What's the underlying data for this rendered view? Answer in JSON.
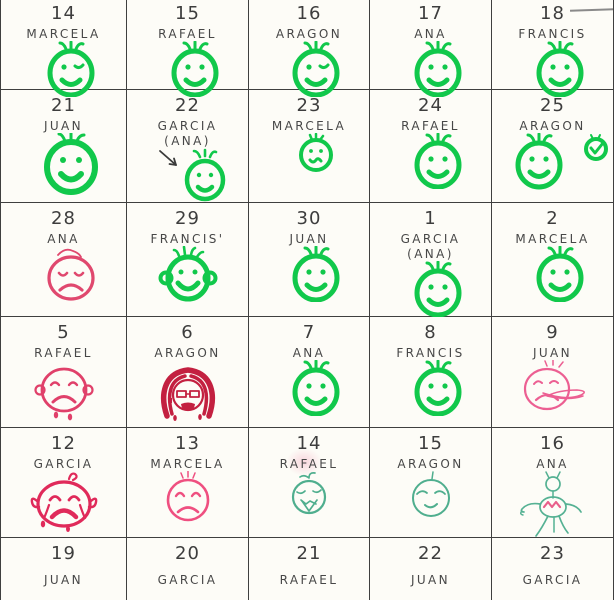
{
  "page": {
    "background": "#fdfcf7",
    "grid_color": "#3f3f3f",
    "ink_color": "#474747"
  },
  "colors": {
    "green": "#11c84b",
    "crimson": "#e0486e",
    "dark_red": "#c32040",
    "pink": "#ec5f92",
    "rose": "#ef4f80",
    "teal": "#4fae8e",
    "pencil": "#3a3a3a"
  },
  "calendar": {
    "columns": 5,
    "rows": 6,
    "cells": [
      {
        "date": "14",
        "name": "MARCELA",
        "face": "green-smiley-wink",
        "color": "#11c84b"
      },
      {
        "date": "15",
        "name": "RAFAEL",
        "face": "green-smiley",
        "color": "#11c84b"
      },
      {
        "date": "16",
        "name": "ARAGON",
        "face": "green-smiley-wink",
        "color": "#11c84b"
      },
      {
        "date": "17",
        "name": "ANA",
        "face": "green-smiley",
        "color": "#11c84b"
      },
      {
        "date": "18",
        "name": "FRANCIS",
        "face": "green-smiley",
        "color": "#11c84b"
      },
      {
        "date": "21",
        "name": "JUAN",
        "face": "green-smiley-large",
        "color": "#11c84b"
      },
      {
        "date": "22",
        "name": "GARCIA",
        "subname": "(ANA)",
        "face": "green-smiley-arrow",
        "color": "#11c84b"
      },
      {
        "date": "23",
        "name": "MARCELA",
        "face": "green-smiley-small",
        "color": "#11c84b"
      },
      {
        "date": "24",
        "name": "RAFAEL",
        "face": "green-smiley",
        "color": "#11c84b"
      },
      {
        "date": "25",
        "name": "ARAGON",
        "face": "green-smiley-check",
        "color": "#11c84b"
      },
      {
        "date": "28",
        "name": "ANA",
        "face": "red-sad",
        "color": "#e0486e"
      },
      {
        "date": "29",
        "name": "FRANCIS'",
        "face": "green-smiley-ears",
        "color": "#11c84b"
      },
      {
        "date": "30",
        "name": "JUAN",
        "face": "green-smiley",
        "color": "#11c84b"
      },
      {
        "date": "1",
        "name": "GARCIA",
        "subname": "(ANA)",
        "face": "green-smiley",
        "color": "#11c84b"
      },
      {
        "date": "2",
        "name": "MARCELA",
        "face": "green-smiley",
        "color": "#11c84b"
      },
      {
        "date": "5",
        "name": "RAFAEL",
        "face": "red-sad-tears",
        "color": "#e0406a"
      },
      {
        "date": "6",
        "name": "ARAGON",
        "face": "red-angry-hair",
        "color": "#c32040"
      },
      {
        "date": "7",
        "name": "ANA",
        "face": "green-smiley",
        "color": "#11c84b"
      },
      {
        "date": "8",
        "name": "FRANCIS",
        "face": "green-smiley",
        "color": "#11c84b"
      },
      {
        "date": "9",
        "name": "JUAN",
        "face": "pink-sad-scribble",
        "color": "#ec5f92"
      },
      {
        "date": "12",
        "name": "GARCIA",
        "face": "red-crying",
        "color": "#e02a5a"
      },
      {
        "date": "13",
        "name": "MARCELA",
        "face": "pink-sad",
        "color": "#ef4f80"
      },
      {
        "date": "14",
        "name": "RAFAEL",
        "face": "teal-bird",
        "color": "#4fae8e"
      },
      {
        "date": "15",
        "name": "ARAGON",
        "face": "teal-smile",
        "color": "#4fae8e"
      },
      {
        "date": "16",
        "name": "ANA",
        "face": "teal-creature",
        "color": "#55b193",
        "accent": "#e85f8a"
      },
      {
        "date": "19",
        "name": "JUAN",
        "face": "none"
      },
      {
        "date": "20",
        "name": "GARCIA",
        "face": "none"
      },
      {
        "date": "21",
        "name": "RAFAEL",
        "face": "none"
      },
      {
        "date": "22",
        "name": "JUAN",
        "face": "none"
      },
      {
        "date": "23",
        "name": "GARCIA",
        "face": "none"
      }
    ]
  }
}
